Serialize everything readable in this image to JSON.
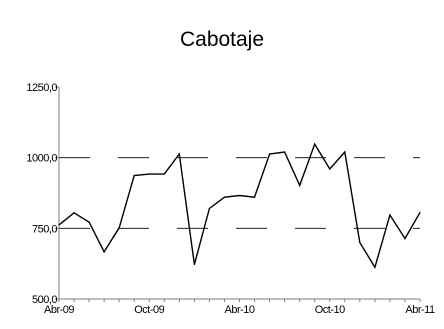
{
  "chart_data": {
    "type": "line",
    "title": "Cabotaje",
    "xlabel": "",
    "ylabel": "",
    "x_tick_labels": [
      "Abr-09",
      "Oct-09",
      "Abr-10",
      "Oct-10",
      "Abr-11"
    ],
    "y_tick_labels": [
      "500,0",
      "750,0",
      "1000,0",
      "1250,0"
    ],
    "ylim": [
      500,
      1250
    ],
    "grid": "horizontal dashed",
    "legend": "none",
    "series": [
      {
        "x": [
          "2009-04",
          "2009-05",
          "2009-06",
          "2009-07",
          "2009-08",
          "2009-09",
          "2009-10",
          "2009-11",
          "2009-12",
          "2010-01",
          "2010-02",
          "2010-03",
          "2010-04",
          "2010-05",
          "2010-06",
          "2010-07",
          "2010-08",
          "2010-09",
          "2010-10",
          "2010-11",
          "2010-12",
          "2011-01",
          "2011-02",
          "2011-03",
          "2011-04"
        ],
        "values": [
          762,
          805,
          772,
          667,
          752,
          937,
          942,
          942,
          1013,
          622,
          820,
          860,
          866,
          860,
          1013,
          1020,
          902,
          1048,
          960,
          1020,
          700,
          612,
          797,
          714,
          806
        ]
      }
    ]
  },
  "colors": {
    "line": "#000000",
    "grid": "#000000",
    "axis": "#7f7f7f"
  }
}
